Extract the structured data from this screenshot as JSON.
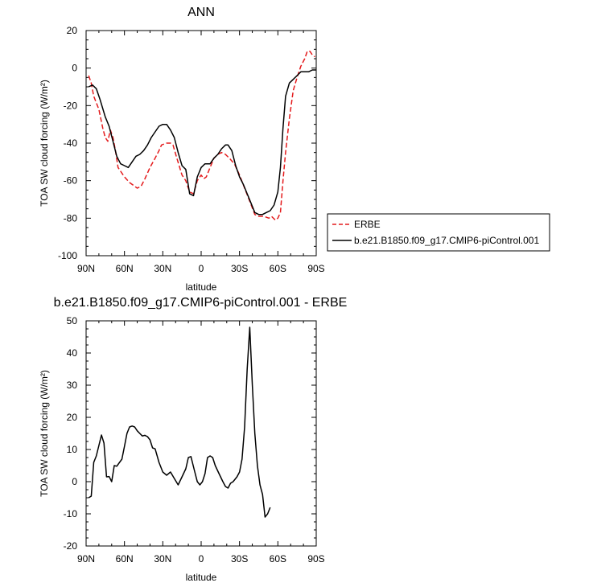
{
  "chart_data": [
    {
      "type": "line",
      "title": "ANN",
      "xlabel": "latitude",
      "ylabel": "TOA SW cloud forcing (W/m²)",
      "xlim": [
        90,
        -90
      ],
      "ylim": [
        -100,
        20
      ],
      "xticks": [
        90,
        60,
        30,
        0,
        -30,
        -60,
        -90
      ],
      "xtick_labels": [
        "90N",
        "60N",
        "30N",
        "0",
        "30S",
        "60S",
        "90S"
      ],
      "yticks": [
        -100,
        -80,
        -60,
        -40,
        -20,
        0,
        20
      ],
      "ytick_labels": [
        "-100",
        "-80",
        "-60",
        "-40",
        "-20",
        "0",
        "20"
      ],
      "legend_position": "right",
      "series": [
        {
          "name": "ERBE",
          "color": "#e41a1c",
          "dash": true,
          "points": [
            [
              88,
              -4
            ],
            [
              86,
              -8
            ],
            [
              84,
              -15
            ],
            [
              80,
              -22
            ],
            [
              77,
              -32
            ],
            [
              75,
              -37
            ],
            [
              73,
              -39
            ],
            [
              71,
              -33
            ],
            [
              69,
              -37
            ],
            [
              67,
              -44
            ],
            [
              65,
              -53
            ],
            [
              63,
              -55
            ],
            [
              60,
              -58
            ],
            [
              56,
              -61
            ],
            [
              52,
              -63
            ],
            [
              50,
              -64
            ],
            [
              47,
              -63
            ],
            [
              44,
              -59
            ],
            [
              40,
              -53
            ],
            [
              36,
              -48
            ],
            [
              33,
              -44
            ],
            [
              31,
              -41
            ],
            [
              27,
              -40
            ],
            [
              24,
              -40
            ],
            [
              22,
              -41
            ],
            [
              19,
              -48
            ],
            [
              15,
              -57
            ],
            [
              12,
              -60
            ],
            [
              9,
              -66
            ],
            [
              6,
              -67
            ],
            [
              3,
              -60
            ],
            [
              0,
              -57
            ],
            [
              -2,
              -59
            ],
            [
              -4,
              -58
            ],
            [
              -7,
              -53
            ],
            [
              -10,
              -48
            ],
            [
              -13,
              -46
            ],
            [
              -16,
              -45
            ],
            [
              -19,
              -46
            ],
            [
              -22,
              -48
            ],
            [
              -26,
              -51
            ],
            [
              -30,
              -57
            ],
            [
              -34,
              -64
            ],
            [
              -38,
              -71
            ],
            [
              -42,
              -78
            ],
            [
              -45,
              -79
            ],
            [
              -49,
              -79
            ],
            [
              -53,
              -80
            ],
            [
              -55,
              -79
            ],
            [
              -58,
              -81
            ],
            [
              -60,
              -80
            ],
            [
              -62,
              -77
            ],
            [
              -64,
              -60
            ],
            [
              -66,
              -45
            ],
            [
              -69,
              -27
            ],
            [
              -72,
              -12
            ],
            [
              -75,
              -5
            ],
            [
              -78,
              1
            ],
            [
              -81,
              5
            ],
            [
              -83,
              9
            ],
            [
              -85,
              9
            ],
            [
              -87,
              7
            ],
            [
              -89,
              6
            ]
          ]
        },
        {
          "name": "b.e21.B1850.f09_g17.CMIP6-piControl.001",
          "color": "#000000",
          "dash": false,
          "points": [
            [
              88,
              -10
            ],
            [
              85,
              -9
            ],
            [
              82,
              -11
            ],
            [
              79,
              -17
            ],
            [
              75,
              -26
            ],
            [
              72,
              -31
            ],
            [
              69,
              -39
            ],
            [
              66,
              -47
            ],
            [
              63,
              -51
            ],
            [
              60,
              -52
            ],
            [
              57,
              -53
            ],
            [
              54,
              -50
            ],
            [
              51,
              -47
            ],
            [
              48,
              -46
            ],
            [
              45,
              -44
            ],
            [
              42,
              -41
            ],
            [
              39,
              -37
            ],
            [
              36,
              -34
            ],
            [
              33,
              -31
            ],
            [
              30,
              -30
            ],
            [
              27,
              -30
            ],
            [
              24,
              -33
            ],
            [
              21,
              -37
            ],
            [
              18,
              -45
            ],
            [
              15,
              -52
            ],
            [
              12,
              -54
            ],
            [
              9,
              -67
            ],
            [
              6,
              -68
            ],
            [
              3,
              -58
            ],
            [
              0,
              -53
            ],
            [
              -3,
              -51
            ],
            [
              -5,
              -51
            ],
            [
              -7,
              -51
            ],
            [
              -10,
              -48
            ],
            [
              -13,
              -46
            ],
            [
              -16,
              -43
            ],
            [
              -19,
              -41
            ],
            [
              -21,
              -41
            ],
            [
              -24,
              -44
            ],
            [
              -27,
              -52
            ],
            [
              -30,
              -58
            ],
            [
              -33,
              -62
            ],
            [
              -36,
              -67
            ],
            [
              -39,
              -72
            ],
            [
              -42,
              -77
            ],
            [
              -45,
              -78
            ],
            [
              -48,
              -78
            ],
            [
              -51,
              -77
            ],
            [
              -54,
              -76
            ],
            [
              -57,
              -73
            ],
            [
              -60,
              -66
            ],
            [
              -62,
              -53
            ],
            [
              -64,
              -32
            ],
            [
              -66,
              -15
            ],
            [
              -69,
              -8
            ],
            [
              -72,
              -6
            ],
            [
              -75,
              -4
            ],
            [
              -78,
              -2
            ],
            [
              -81,
              -2
            ],
            [
              -84,
              -2
            ],
            [
              -87,
              -1
            ],
            [
              -90,
              -1
            ]
          ]
        }
      ]
    },
    {
      "type": "line",
      "title": "b.e21.B1850.f09_g17.CMIP6-piControl.001 - ERBE",
      "xlabel": "latitude",
      "ylabel": "TOA SW cloud forcing (W/m²)",
      "xlim": [
        90,
        -90
      ],
      "ylim": [
        -20,
        50
      ],
      "xticks": [
        90,
        60,
        30,
        0,
        -30,
        -60,
        -90
      ],
      "xtick_labels": [
        "90N",
        "60N",
        "30N",
        "0",
        "30S",
        "60S",
        "90S"
      ],
      "yticks": [
        -20,
        -10,
        0,
        10,
        20,
        30,
        40,
        50
      ],
      "ytick_labels": [
        "-20",
        "-10",
        "0",
        "10",
        "20",
        "30",
        "40",
        "50"
      ],
      "series": [
        {
          "color": "#000000",
          "dash": false,
          "points": [
            [
              88,
              -5
            ],
            [
              86,
              -4.5
            ],
            [
              84,
              6
            ],
            [
              82,
              8
            ],
            [
              78,
              14.5
            ],
            [
              76,
              12
            ],
            [
              74,
              1.5
            ],
            [
              72,
              1.6
            ],
            [
              70,
              0
            ],
            [
              68,
              5
            ],
            [
              66,
              4.8
            ],
            [
              62,
              7
            ],
            [
              60,
              11
            ],
            [
              58,
              15
            ],
            [
              56,
              17
            ],
            [
              54,
              17.3
            ],
            [
              52,
              17
            ],
            [
              50,
              15.8
            ],
            [
              48,
              15
            ],
            [
              46,
              14.2
            ],
            [
              44,
              14.4
            ],
            [
              42,
              14
            ],
            [
              40,
              13
            ],
            [
              38,
              10.5
            ],
            [
              36,
              10.2
            ],
            [
              33,
              6
            ],
            [
              30,
              3
            ],
            [
              27,
              2
            ],
            [
              24,
              3
            ],
            [
              21,
              1
            ],
            [
              18,
              -1
            ],
            [
              15,
              1.5
            ],
            [
              12,
              4
            ],
            [
              10,
              7.5
            ],
            [
              8,
              7.8
            ],
            [
              5,
              3
            ],
            [
              3,
              0
            ],
            [
              1,
              -1
            ],
            [
              -1,
              0
            ],
            [
              -3,
              2.5
            ],
            [
              -5,
              7.5
            ],
            [
              -7,
              8
            ],
            [
              -9,
              7.5
            ],
            [
              -11,
              5
            ],
            [
              -14,
              2.5
            ],
            [
              -17,
              0
            ],
            [
              -19,
              -1.5
            ],
            [
              -21,
              -2
            ],
            [
              -23,
              -0.5
            ],
            [
              -25,
              0
            ],
            [
              -28,
              1.5
            ],
            [
              -30,
              3
            ],
            [
              -32,
              7
            ],
            [
              -34,
              17
            ],
            [
              -36,
              35
            ],
            [
              -38,
              48
            ],
            [
              -40,
              30
            ],
            [
              -42,
              15
            ],
            [
              -44,
              5
            ],
            [
              -46,
              -1
            ],
            [
              -48,
              -4
            ],
            [
              -50,
              -11
            ],
            [
              -52,
              -10
            ],
            [
              -54,
              -8
            ]
          ]
        }
      ]
    }
  ]
}
